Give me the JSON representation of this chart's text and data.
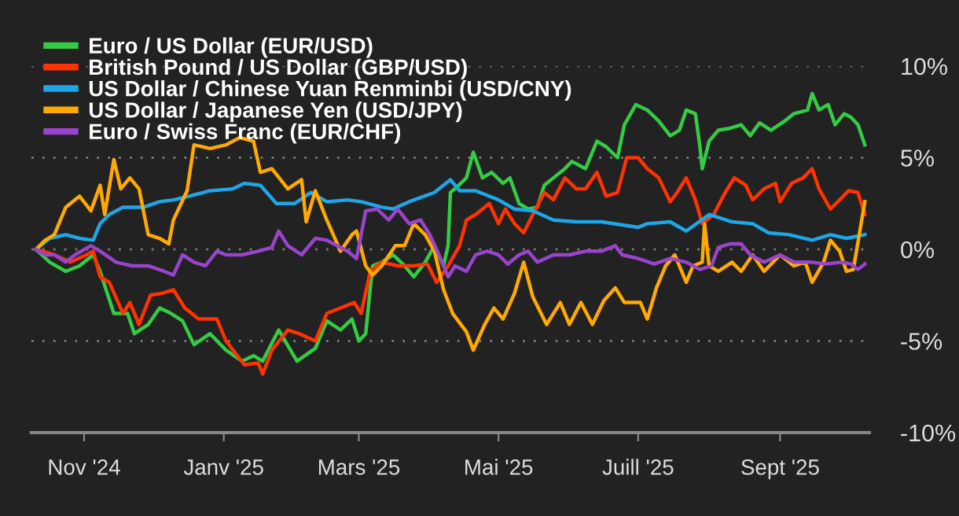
{
  "chart_data": {
    "type": "line",
    "xlim": [
      "2024-10-09",
      "2025-10-10"
    ],
    "xticks": [
      {
        "value": "2024-11-01",
        "label": "Nov '24"
      },
      {
        "value": "2025-01-01",
        "label": "Janv '25"
      },
      {
        "value": "2025-03-01",
        "label": "Mars '25"
      },
      {
        "value": "2025-05-01",
        "label": "Mai '25"
      },
      {
        "value": "2025-07-01",
        "label": "Juill '25"
      },
      {
        "value": "2025-09-01",
        "label": "Sept '25"
      }
    ],
    "ylim": [
      -10,
      10
    ],
    "yticks": [
      {
        "value": -10,
        "label": "-10%"
      },
      {
        "value": -5,
        "label": "-5%"
      },
      {
        "value": 0,
        "label": "0%"
      },
      {
        "value": 5,
        "label": "5%"
      },
      {
        "value": 10,
        "label": "10%"
      }
    ],
    "grid": "y",
    "legend": "top left",
    "line_style": "solid",
    "marker": "none",
    "series": [
      {
        "name": "Euro / US Dollar (EUR/USD)",
        "color": "#33cc44",
        "x": [
          "2024-10-11",
          "2024-10-17",
          "2024-10-24",
          "2024-10-30",
          "2024-11-05",
          "2024-11-08",
          "2024-11-14",
          "2024-11-20",
          "2024-11-23",
          "2024-11-29",
          "2024-12-04",
          "2024-12-09",
          "2024-12-14",
          "2024-12-19",
          "2024-12-26",
          "2025-01-02",
          "2025-01-09",
          "2025-01-14",
          "2025-01-18",
          "2025-01-25",
          "2025-02-02",
          "2025-02-10",
          "2025-02-15",
          "2025-02-21",
          "2025-02-26",
          "2025-03-01",
          "2025-03-04",
          "2025-03-07",
          "2025-03-11",
          "2025-03-16",
          "2025-03-21",
          "2025-03-25",
          "2025-03-30",
          "2025-04-03",
          "2025-04-07",
          "2025-04-09",
          "2025-04-10",
          "2025-04-12",
          "2025-04-17",
          "2025-04-20",
          "2025-04-24",
          "2025-04-28",
          "2025-05-03",
          "2025-05-06",
          "2025-05-10",
          "2025-05-14",
          "2025-05-18",
          "2025-05-21",
          "2025-05-25",
          "2025-05-30",
          "2025-06-02",
          "2025-06-08",
          "2025-06-13",
          "2025-06-17",
          "2025-06-22",
          "2025-06-25",
          "2025-06-30",
          "2025-07-05",
          "2025-07-10",
          "2025-07-15",
          "2025-07-19",
          "2025-07-22",
          "2025-07-26",
          "2025-07-28",
          "2025-07-29",
          "2025-08-01",
          "2025-08-05",
          "2025-08-10",
          "2025-08-15",
          "2025-08-19",
          "2025-08-23",
          "2025-08-28",
          "2025-09-03",
          "2025-09-07",
          "2025-09-13",
          "2025-09-15",
          "2025-09-18",
          "2025-09-22",
          "2025-09-25",
          "2025-09-29",
          "2025-10-02",
          "2025-10-05",
          "2025-10-08"
        ],
        "values": [
          0,
          -0.7,
          -1.2,
          -0.9,
          -0.3,
          -1.2,
          -3.5,
          -3.5,
          -4.6,
          -4.1,
          -3.2,
          -3.5,
          -3.9,
          -5.2,
          -4.6,
          -5.5,
          -6.1,
          -5.8,
          -6.1,
          -4.4,
          -6.1,
          -5.4,
          -3.9,
          -4.4,
          -3.8,
          -5.0,
          -4.6,
          -0.9,
          -0.7,
          -0.3,
          -0.9,
          -1.5,
          -0.7,
          0.2,
          -0.9,
          0.2,
          3.1,
          3.3,
          3.9,
          5.3,
          3.9,
          4.2,
          3.6,
          3.9,
          2.5,
          2.2,
          2.3,
          3.5,
          3.9,
          4.4,
          4.8,
          4.4,
          5.9,
          5.6,
          5.0,
          6.8,
          7.9,
          7.6,
          7.0,
          6.2,
          6.5,
          7.6,
          7.4,
          5.6,
          4.4,
          5.9,
          6.5,
          6.6,
          6.8,
          6.2,
          6.9,
          6.5,
          7.0,
          7.4,
          7.6,
          8.5,
          7.6,
          7.9,
          6.8,
          7.4,
          7.2,
          6.8,
          5.7
        ]
      },
      {
        "name": "British Pound / US Dollar (GBP/USD)",
        "color": "#ff3300",
        "x": [
          "2024-10-11",
          "2024-10-19",
          "2024-10-26",
          "2024-11-02",
          "2024-11-05",
          "2024-11-08",
          "2024-11-12",
          "2024-11-18",
          "2024-11-21",
          "2024-11-25",
          "2024-11-30",
          "2024-12-05",
          "2024-12-10",
          "2024-12-15",
          "2024-12-21",
          "2024-12-29",
          "2025-01-02",
          "2025-01-10",
          "2025-01-16",
          "2025-01-18",
          "2025-01-22",
          "2025-01-29",
          "2025-02-03",
          "2025-02-10",
          "2025-02-15",
          "2025-02-21",
          "2025-02-27",
          "2025-03-02",
          "2025-03-06",
          "2025-03-11",
          "2025-03-18",
          "2025-03-25",
          "2025-03-31",
          "2025-04-04",
          "2025-04-09",
          "2025-04-14",
          "2025-04-17",
          "2025-04-21",
          "2025-04-27",
          "2025-05-01",
          "2025-05-04",
          "2025-05-08",
          "2025-05-12",
          "2025-05-16",
          "2025-05-21",
          "2025-05-25",
          "2025-05-30",
          "2025-06-04",
          "2025-06-08",
          "2025-06-13",
          "2025-06-17",
          "2025-06-22",
          "2025-06-26",
          "2025-07-01",
          "2025-07-05",
          "2025-07-10",
          "2025-07-15",
          "2025-07-18",
          "2025-07-22",
          "2025-07-26",
          "2025-07-29",
          "2025-08-03",
          "2025-08-08",
          "2025-08-12",
          "2025-08-17",
          "2025-08-20",
          "2025-08-25",
          "2025-08-30",
          "2025-09-01",
          "2025-09-06",
          "2025-09-11",
          "2025-09-15",
          "2025-09-18",
          "2025-09-23",
          "2025-09-27",
          "2025-10-01",
          "2025-10-05",
          "2025-10-08"
        ],
        "values": [
          0,
          -0.3,
          -0.7,
          -0.3,
          -0.1,
          -1.5,
          -1.8,
          -3.5,
          -2.9,
          -4.1,
          -2.5,
          -2.4,
          -2.2,
          -3.2,
          -3.8,
          -3.8,
          -5.0,
          -6.3,
          -6.2,
          -6.8,
          -5.5,
          -4.4,
          -4.6,
          -5.0,
          -3.5,
          -3.2,
          -2.9,
          -3.5,
          -1.2,
          -0.7,
          -0.9,
          -0.9,
          -0.8,
          -1.8,
          -0.9,
          0.2,
          1.6,
          1.9,
          2.5,
          1.4,
          2.2,
          1.4,
          0.9,
          1.9,
          3.1,
          2.7,
          3.9,
          3.3,
          3.3,
          4.2,
          2.9,
          3.1,
          5.0,
          5.0,
          4.4,
          3.9,
          2.6,
          3.1,
          3.9,
          2.7,
          1.4,
          1.9,
          3.1,
          3.9,
          3.5,
          2.7,
          3.3,
          3.6,
          2.6,
          3.6,
          3.9,
          4.4,
          3.3,
          2.2,
          2.7,
          3.2,
          3.1,
          1.9
        ]
      },
      {
        "name": "US Dollar / Chinese Yuan Renminbi (USD/CNY)",
        "color": "#1ea7e8",
        "x": [
          "2024-10-11",
          "2024-10-17",
          "2024-10-24",
          "2024-10-30",
          "2024-11-05",
          "2024-11-08",
          "2024-11-12",
          "2024-11-18",
          "2024-11-27",
          "2024-12-04",
          "2024-12-10",
          "2024-12-17",
          "2024-12-26",
          "2025-01-05",
          "2025-01-10",
          "2025-01-17",
          "2025-01-24",
          "2025-02-01",
          "2025-02-08",
          "2025-02-15",
          "2025-02-24",
          "2025-03-02",
          "2025-03-11",
          "2025-03-16",
          "2025-03-23",
          "2025-04-03",
          "2025-04-10",
          "2025-04-14",
          "2025-04-21",
          "2025-05-01",
          "2025-05-08",
          "2025-05-16",
          "2025-05-25",
          "2025-06-04",
          "2025-06-15",
          "2025-07-01",
          "2025-07-05",
          "2025-07-15",
          "2025-07-22",
          "2025-08-01",
          "2025-08-11",
          "2025-08-20",
          "2025-08-27",
          "2025-09-05",
          "2025-09-15",
          "2025-09-23",
          "2025-09-30",
          "2025-10-08"
        ],
        "values": [
          0,
          0.6,
          0.8,
          0.6,
          0.5,
          1.4,
          1.9,
          2.3,
          2.3,
          2.6,
          2.7,
          2.9,
          3.2,
          3.3,
          3.6,
          3.5,
          2.5,
          2.5,
          3.1,
          2.6,
          2.7,
          2.6,
          2.3,
          2.2,
          2.6,
          3.1,
          3.8,
          3.2,
          3.2,
          2.7,
          2.2,
          2.1,
          1.6,
          1.5,
          1.5,
          1.2,
          1.4,
          1.5,
          1.0,
          1.9,
          1.5,
          1.4,
          0.9,
          0.8,
          0.5,
          0.8,
          0.6,
          0.8
        ]
      },
      {
        "name": "US Dollar / Japanese Yen (USD/JPY)",
        "color": "#ffaa00",
        "x": [
          "2024-10-11",
          "2024-10-15",
          "2024-10-19",
          "2024-10-24",
          "2024-10-30",
          "2024-11-04",
          "2024-11-08",
          "2024-11-10",
          "2024-11-14",
          "2024-11-17",
          "2024-11-21",
          "2024-11-25",
          "2024-11-29",
          "2024-12-04",
          "2024-12-08",
          "2024-12-10",
          "2024-12-16",
          "2024-12-19",
          "2024-12-26",
          "2025-01-02",
          "2025-01-08",
          "2025-01-14",
          "2025-01-17",
          "2025-01-22",
          "2025-01-29",
          "2025-02-04",
          "2025-02-06",
          "2025-02-10",
          "2025-02-15",
          "2025-02-21",
          "2025-02-26",
          "2025-02-28",
          "2025-03-04",
          "2025-03-07",
          "2025-03-11",
          "2025-03-17",
          "2025-03-21",
          "2025-03-25",
          "2025-03-30",
          "2025-04-03",
          "2025-04-07",
          "2025-04-11",
          "2025-04-17",
          "2025-04-20",
          "2025-04-25",
          "2025-04-29",
          "2025-05-03",
          "2025-05-08",
          "2025-05-12",
          "2025-05-16",
          "2025-05-22",
          "2025-05-28",
          "2025-06-01",
          "2025-06-06",
          "2025-06-11",
          "2025-06-16",
          "2025-06-21",
          "2025-06-25",
          "2025-07-02",
          "2025-07-05",
          "2025-07-09",
          "2025-07-13",
          "2025-07-17",
          "2025-07-22",
          "2025-07-25",
          "2025-07-29",
          "2025-07-30",
          "2025-08-01",
          "2025-08-05",
          "2025-08-11",
          "2025-08-15",
          "2025-08-20",
          "2025-08-25",
          "2025-09-01",
          "2025-09-07",
          "2025-09-12",
          "2025-09-15",
          "2025-09-20",
          "2025-09-23",
          "2025-09-27",
          "2025-09-30",
          "2025-10-03",
          "2025-10-08"
        ],
        "values": [
          0,
          0.5,
          0.8,
          2.3,
          2.9,
          2.1,
          3.5,
          1.9,
          4.9,
          3.3,
          3.9,
          3.3,
          0.8,
          0.6,
          0.3,
          1.6,
          3.2,
          5.7,
          5.5,
          5.7,
          6.1,
          5.9,
          4.2,
          4.4,
          3.3,
          3.8,
          1.5,
          3.2,
          1.6,
          -0.1,
          0.8,
          1.0,
          -0.9,
          -1.4,
          -0.9,
          0.2,
          0.2,
          1.4,
          0.8,
          -0.1,
          -2.2,
          -3.5,
          -4.5,
          -5.5,
          -4.1,
          -3.2,
          -3.8,
          -2.4,
          -0.7,
          -2.6,
          -4.1,
          -2.9,
          -4.1,
          -2.9,
          -4.1,
          -2.8,
          -2.1,
          -2.9,
          -2.9,
          -3.8,
          -2.1,
          -0.9,
          -0.3,
          -1.8,
          -0.9,
          -0.7,
          1.4,
          -0.9,
          -1.2,
          -0.7,
          -1.2,
          -0.3,
          -1.2,
          -0.3,
          -0.9,
          -0.7,
          -1.8,
          -0.7,
          0.5,
          -0.1,
          -1.2,
          -1.1,
          2.6
        ]
      },
      {
        "name": "Euro / Swiss Franc (EUR/CHF)",
        "color": "#9944cc",
        "x": [
          "2024-10-11",
          "2024-10-15",
          "2024-10-19",
          "2024-10-24",
          "2024-10-28",
          "2024-11-04",
          "2024-11-08",
          "2024-11-15",
          "2024-11-22",
          "2024-11-29",
          "2024-12-06",
          "2024-12-10",
          "2024-12-14",
          "2024-12-19",
          "2024-12-24",
          "2024-12-29",
          "2025-01-02",
          "2025-01-09",
          "2025-01-16",
          "2025-01-22",
          "2025-01-25",
          "2025-01-29",
          "2025-02-04",
          "2025-02-10",
          "2025-02-15",
          "2025-02-24",
          "2025-02-28",
          "2025-03-04",
          "2025-03-09",
          "2025-03-14",
          "2025-03-18",
          "2025-03-23",
          "2025-03-28",
          "2025-04-01",
          "2025-04-05",
          "2025-04-09",
          "2025-04-12",
          "2025-04-17",
          "2025-04-21",
          "2025-04-26",
          "2025-05-01",
          "2025-05-05",
          "2025-05-10",
          "2025-05-14",
          "2025-05-18",
          "2025-05-25",
          "2025-06-01",
          "2025-06-08",
          "2025-06-15",
          "2025-06-21",
          "2025-06-24",
          "2025-07-01",
          "2025-07-08",
          "2025-07-15",
          "2025-07-22",
          "2025-07-28",
          "2025-08-02",
          "2025-08-05",
          "2025-08-10",
          "2025-08-15",
          "2025-08-19",
          "2025-08-25",
          "2025-09-01",
          "2025-09-07",
          "2025-09-14",
          "2025-09-21",
          "2025-09-28",
          "2025-10-02",
          "2025-10-05",
          "2025-10-08"
        ],
        "values": [
          0,
          -0.3,
          -0.3,
          -0.7,
          -0.3,
          0.2,
          -0.1,
          -0.7,
          -0.9,
          -0.9,
          -1.2,
          -1.4,
          -0.3,
          -0.7,
          -0.9,
          -0.1,
          -0.3,
          -0.3,
          -0.1,
          0.1,
          1.0,
          0.2,
          -0.3,
          0.6,
          0.5,
          -0.1,
          -0.5,
          2.1,
          2.2,
          1.6,
          2.2,
          1.4,
          1.6,
          0.8,
          -0.3,
          -1.5,
          -0.9,
          -1.2,
          -0.3,
          -0.1,
          -0.3,
          -0.8,
          -0.3,
          -0.1,
          -0.7,
          -0.3,
          -0.3,
          -0.1,
          -0.1,
          0.2,
          -0.3,
          -0.5,
          -0.8,
          -0.5,
          -0.7,
          -1.1,
          -0.9,
          0.1,
          0.3,
          0.3,
          -0.3,
          -0.7,
          -0.3,
          -0.7,
          -0.7,
          -0.8,
          -0.7,
          -0.8,
          -1.1,
          -0.8
        ]
      }
    ]
  }
}
